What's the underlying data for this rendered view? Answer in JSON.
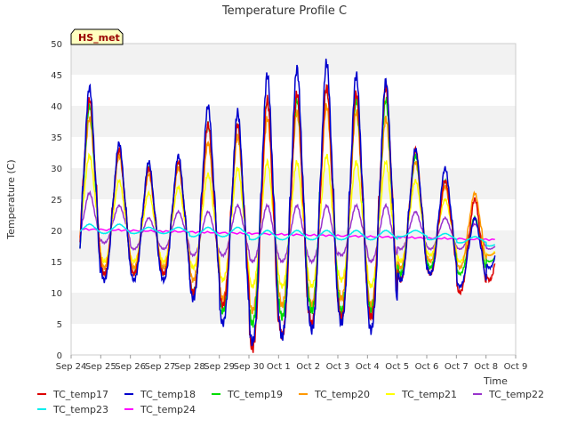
{
  "chart_data": {
    "type": "line",
    "title": "Temperature Profile C",
    "xlabel": "Time",
    "ylabel": "Temperature (C)",
    "ylim": [
      0,
      50
    ],
    "yticks": [
      0,
      5,
      10,
      15,
      20,
      25,
      30,
      35,
      40,
      45,
      50
    ],
    "xlim": [
      "2023-09-24",
      "2023-10-09"
    ],
    "xtick_labels": [
      "Sep 24",
      "Sep 25",
      "Sep 26",
      "Sep 27",
      "Sep 28",
      "Sep 29",
      "Sep 30",
      "Oct 1",
      "Oct 2",
      "Oct 3",
      "Oct 4",
      "Oct 5",
      "Oct 6",
      "Oct 7",
      "Oct 8",
      "Oct 9"
    ],
    "grid": "horizontal bands",
    "legend_position": "bottom",
    "annotation": "HS_met",
    "days": [
      "Sep 24",
      "Sep 25",
      "Sep 26",
      "Sep 27",
      "Sep 28",
      "Sep 29",
      "Sep 30",
      "Oct 1",
      "Oct 2",
      "Oct 3",
      "Oct 4",
      "Oct 5",
      "Oct 6",
      "Oct 7",
      "Oct 8"
    ],
    "series": [
      {
        "name": "TC_temp17",
        "color": "#dd0000",
        "daily_max": [
          41,
          33,
          30,
          31,
          37,
          37,
          41,
          42,
          43,
          42,
          43,
          33,
          28,
          25,
          25
        ],
        "daily_min": [
          12,
          13,
          13,
          13,
          10,
          8,
          1,
          3,
          5,
          6,
          6,
          12,
          13,
          10,
          12
        ]
      },
      {
        "name": "TC_temp18",
        "color": "#0000cc",
        "daily_max": [
          43,
          34,
          31,
          32,
          40,
          39,
          45,
          46,
          47,
          45,
          44,
          33,
          30,
          22,
          22
        ],
        "daily_min": [
          9,
          12,
          12,
          12,
          9,
          5,
          2,
          3,
          4,
          5,
          4,
          12,
          13,
          11,
          14
        ]
      },
      {
        "name": "TC_temp19",
        "color": "#00dd00",
        "daily_max": [
          40,
          33,
          30,
          31,
          37,
          37,
          41,
          41,
          43,
          41,
          41,
          32,
          28,
          22,
          18
        ],
        "daily_min": [
          11,
          13,
          13,
          13,
          10,
          7,
          5,
          6,
          7,
          7,
          7,
          13,
          14,
          13,
          15
        ]
      },
      {
        "name": "TC_temp20",
        "color": "#ff9900",
        "daily_max": [
          38,
          32,
          29,
          30,
          34,
          35,
          38,
          39,
          40,
          39,
          38,
          31,
          27,
          26,
          18
        ],
        "daily_min": [
          13,
          14,
          14,
          14,
          12,
          9,
          7,
          8,
          8,
          9,
          8,
          14,
          15,
          14,
          16
        ]
      },
      {
        "name": "TC_temp21",
        "color": "#ffff00",
        "daily_max": [
          32,
          28,
          26,
          27,
          29,
          30,
          31,
          31,
          32,
          31,
          31,
          28,
          25,
          22,
          19
        ],
        "daily_min": [
          15,
          15,
          15,
          15,
          14,
          12,
          11,
          11,
          11,
          12,
          11,
          15,
          16,
          15,
          16
        ]
      },
      {
        "name": "TC_temp22",
        "color": "#9933cc",
        "daily_max": [
          26,
          24,
          22,
          23,
          23,
          24,
          24,
          24,
          24,
          24,
          24,
          23,
          22,
          21,
          19
        ],
        "daily_min": [
          17,
          18,
          17,
          17,
          16,
          16,
          15,
          15,
          15,
          16,
          15,
          17,
          17,
          17,
          17
        ]
      },
      {
        "name": "TC_temp23",
        "color": "#00eeee",
        "daily_max": [
          21,
          21,
          20.5,
          20.5,
          20.5,
          20.5,
          20,
          20,
          20,
          20,
          20,
          20,
          19.5,
          19,
          18.5
        ],
        "daily_min": [
          19.5,
          19.5,
          19.5,
          19.5,
          19,
          19,
          18.5,
          18.5,
          18.5,
          18.5,
          18.5,
          19,
          18.5,
          18,
          17.5
        ]
      },
      {
        "name": "TC_temp24",
        "color": "#ff00ff",
        "start_value": 20.2,
        "end_value": 18.5
      }
    ]
  }
}
